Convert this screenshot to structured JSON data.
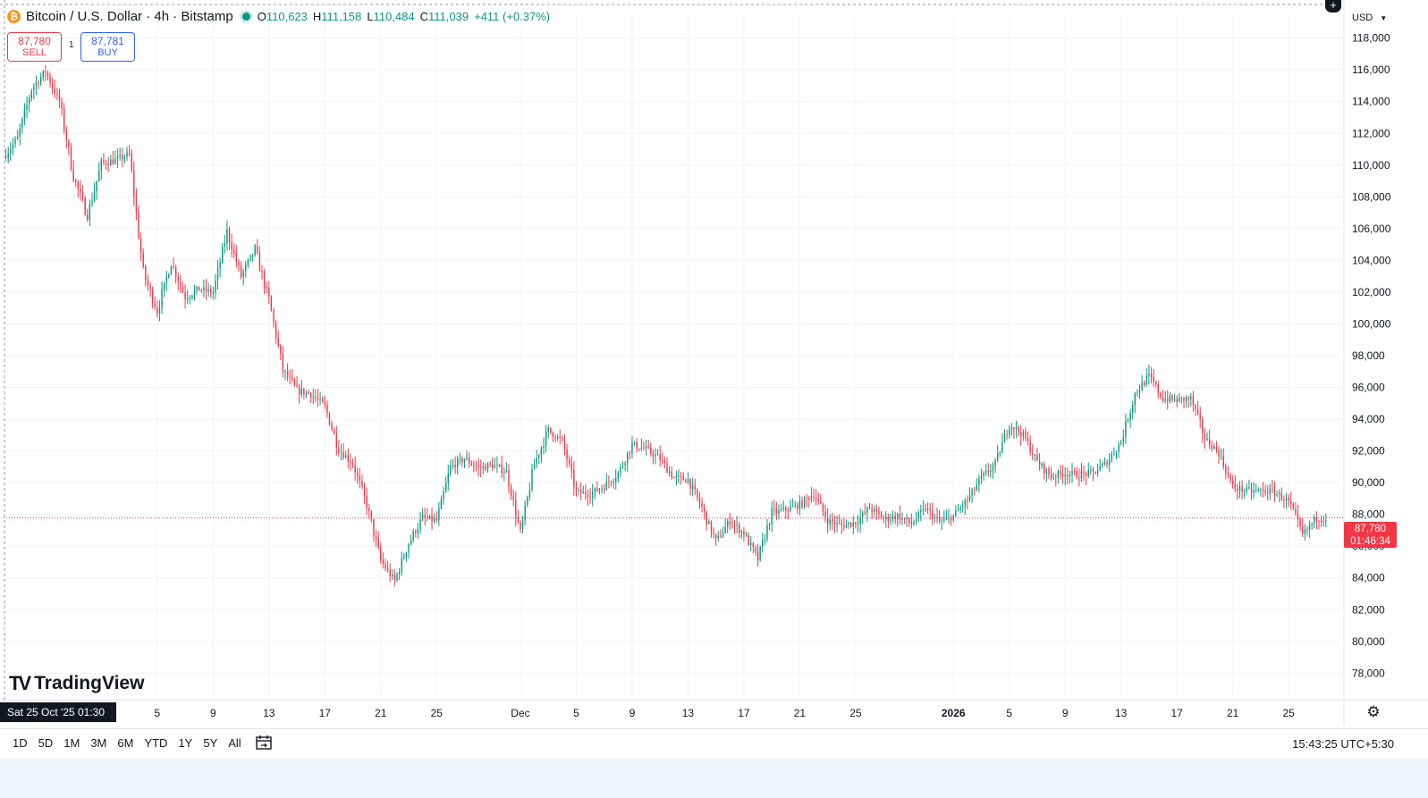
{
  "legend": {
    "symbol_icon": "bitcoin-icon",
    "title": "Bitcoin / U.S. Dollar · 4h · Bitstamp",
    "o_label": "O",
    "o_value": "110,623",
    "h_label": "H",
    "h_value": "111,158",
    "l_label": "L",
    "l_value": "110,484",
    "c_label": "C",
    "c_value": "111,039",
    "change": "+411 (+0.37%)"
  },
  "trade": {
    "sell_price": "87,780",
    "sell_label": "SELL",
    "spread": "1",
    "buy_price": "87,781",
    "buy_label": "BUY"
  },
  "currency": "USD",
  "logo": "TradingView",
  "cursor_date": "Sat 25 Oct '25   01:30",
  "last_price": {
    "value": "87,780",
    "countdown": "01:46:34"
  },
  "periods": [
    "1D",
    "5D",
    "1M",
    "3M",
    "6M",
    "YTD",
    "1Y",
    "5Y",
    "All"
  ],
  "clock": "15:43:25 UTC+5:30",
  "colors": {
    "up": "#089981",
    "down": "#f23645",
    "grid": "#f0f3fa",
    "text": "#131722"
  },
  "chart_data": {
    "type": "candlestick",
    "interval": "4h",
    "y_axis": {
      "ticks": [
        78000,
        80000,
        82000,
        84000,
        86000,
        88000,
        90000,
        92000,
        94000,
        96000,
        98000,
        100000,
        102000,
        104000,
        106000,
        108000,
        110000,
        112000,
        114000,
        116000,
        118000
      ],
      "tick_labels": [
        "78,000",
        "80,000",
        "82,000",
        "84,000",
        "86,000",
        "88,000",
        "90,000",
        "92,000",
        "94,000",
        "96,000",
        "98,000",
        "100,000",
        "102,000",
        "104,000",
        "106,000",
        "108,000",
        "110,000",
        "112,000",
        "114,000",
        "116,000",
        "118,000"
      ],
      "range": [
        76500,
        119500
      ]
    },
    "x_axis": {
      "ticks": [
        "5",
        "9",
        "13",
        "17",
        "21",
        "25",
        "Dec",
        "5",
        "9",
        "13",
        "17",
        "21",
        "25",
        "2026",
        "5",
        "9",
        "13",
        "17",
        "21",
        "25"
      ],
      "bold_ticks": [
        "2026"
      ],
      "range": [
        "2025-10-25",
        "2026-01-27"
      ]
    },
    "grid": true,
    "last_price": 87780,
    "path": [
      [
        "2025-10-25",
        110500
      ],
      [
        "2025-10-26",
        111700
      ],
      [
        "2025-10-27",
        114800
      ],
      [
        "2025-10-28",
        115900
      ],
      [
        "2025-10-29",
        114000
      ],
      [
        "2025-10-30",
        109300
      ],
      [
        "2025-10-31",
        106800
      ],
      [
        "2025-11-01",
        110100
      ],
      [
        "2025-11-02",
        110300
      ],
      [
        "2025-11-03",
        110700
      ],
      [
        "2025-11-04",
        103200
      ],
      [
        "2025-11-05",
        100800
      ],
      [
        "2025-11-06",
        103900
      ],
      [
        "2025-11-07",
        101700
      ],
      [
        "2025-11-08",
        102200
      ],
      [
        "2025-11-09",
        102000
      ],
      [
        "2025-11-10",
        105800
      ],
      [
        "2025-11-11",
        103000
      ],
      [
        "2025-11-12",
        104700
      ],
      [
        "2025-11-13",
        101500
      ],
      [
        "2025-11-14",
        97100
      ],
      [
        "2025-11-15",
        95800
      ],
      [
        "2025-11-16",
        95600
      ],
      [
        "2025-11-17",
        94800
      ],
      [
        "2025-11-18",
        92100
      ],
      [
        "2025-11-19",
        91200
      ],
      [
        "2025-11-20",
        88600
      ],
      [
        "2025-11-21",
        85100
      ],
      [
        "2025-11-22",
        83800
      ],
      [
        "2025-11-23",
        86200
      ],
      [
        "2025-11-24",
        87800
      ],
      [
        "2025-11-25",
        87600
      ],
      [
        "2025-11-26",
        91000
      ],
      [
        "2025-11-27",
        91500
      ],
      [
        "2025-11-28",
        90900
      ],
      [
        "2025-11-29",
        91100
      ],
      [
        "2025-11-30",
        90700
      ],
      [
        "2025-12-01",
        86800
      ],
      [
        "2025-12-02",
        91200
      ],
      [
        "2025-12-03",
        93300
      ],
      [
        "2025-12-04",
        92600
      ],
      [
        "2025-12-05",
        89400
      ],
      [
        "2025-12-06",
        89300
      ],
      [
        "2025-12-07",
        89800
      ],
      [
        "2025-12-08",
        90600
      ],
      [
        "2025-12-09",
        92400
      ],
      [
        "2025-12-10",
        92100
      ],
      [
        "2025-12-11",
        91500
      ],
      [
        "2025-12-12",
        90300
      ],
      [
        "2025-12-13",
        90200
      ],
      [
        "2025-12-14",
        88400
      ],
      [
        "2025-12-15",
        86300
      ],
      [
        "2025-12-16",
        87600
      ],
      [
        "2025-12-17",
        86800
      ],
      [
        "2025-12-18",
        85200
      ],
      [
        "2025-12-19",
        88100
      ],
      [
        "2025-12-20",
        88300
      ],
      [
        "2025-12-21",
        88600
      ],
      [
        "2025-12-22",
        89300
      ],
      [
        "2025-12-23",
        87600
      ],
      [
        "2025-12-24",
        87300
      ],
      [
        "2025-12-25",
        87500
      ],
      [
        "2025-12-26",
        88400
      ],
      [
        "2025-12-27",
        87700
      ],
      [
        "2025-12-28",
        87900
      ],
      [
        "2025-12-29",
        87400
      ],
      [
        "2025-12-30",
        88400
      ],
      [
        "2025-12-31",
        87500
      ],
      [
        "2026-01-01",
        87900
      ],
      [
        "2026-01-02",
        88900
      ],
      [
        "2026-01-03",
        90300
      ],
      [
        "2026-01-04",
        91200
      ],
      [
        "2026-01-05",
        93700
      ],
      [
        "2026-01-06",
        93000
      ],
      [
        "2026-01-07",
        91300
      ],
      [
        "2026-01-08",
        90400
      ],
      [
        "2026-01-09",
        90600
      ],
      [
        "2026-01-10",
        90500
      ],
      [
        "2026-01-11",
        90600
      ],
      [
        "2026-01-12",
        91300
      ],
      [
        "2026-01-13",
        92600
      ],
      [
        "2026-01-14",
        95600
      ],
      [
        "2026-01-15",
        96700
      ],
      [
        "2026-01-16",
        95300
      ],
      [
        "2026-01-17",
        95200
      ],
      [
        "2026-01-18",
        95300
      ],
      [
        "2026-01-19",
        92800
      ],
      [
        "2026-01-20",
        91900
      ],
      [
        "2026-01-21",
        89700
      ],
      [
        "2026-01-22",
        89500
      ],
      [
        "2026-01-23",
        89500
      ],
      [
        "2026-01-24",
        89400
      ],
      [
        "2026-01-25",
        88800
      ],
      [
        "2026-01-26",
        86700
      ],
      [
        "2026-01-27",
        87780
      ]
    ]
  }
}
